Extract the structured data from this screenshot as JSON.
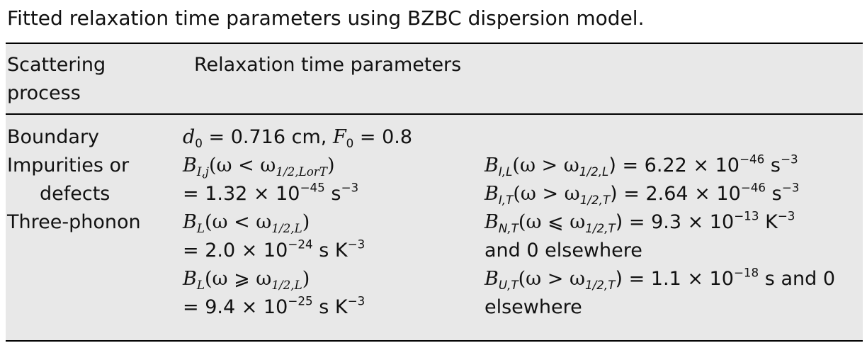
{
  "caption": "Fitted relaxation time parameters using BZBC dispersion model.",
  "header": {
    "col1_line1": "Scattering",
    "col1_line2": "process",
    "col2": "Relaxation time parameters"
  },
  "rows": {
    "boundary": {
      "label": "Boundary",
      "d_sym": "d",
      "d_sub": "0",
      "d_value": " = 0.716 cm, ",
      "f_sym": "F",
      "f_sub": "0",
      "f_value": " = 0.8"
    },
    "impurities": {
      "label_line1": "Impurities or",
      "label_line2": "defects",
      "left_line1_sym": "B",
      "left_line1_sub": "I,j",
      "left_line1_arg": "(ω < ω",
      "left_line1_argsub": "1/2,LorT",
      "left_line1_end": ")",
      "left_line2": "= 1.32 × 10",
      "left_line2_exp": "−45",
      "left_line2_unit": " s",
      "left_line2_unit_exp": "−3",
      "right_line1_sym": "B",
      "right_line1_sub": "I,L",
      "right_line1_arg": "(ω > ω",
      "right_line1_argsub": "1/2,L",
      "right_line1_val": ") = 6.22 × 10",
      "right_line1_exp": "−46",
      "right_line1_unit": " s",
      "right_line1_unit_exp": "−3",
      "right_line2_sym": "B",
      "right_line2_sub": "I,T",
      "right_line2_arg": "(ω > ω",
      "right_line2_argsub": "1/2,T",
      "right_line2_val": ") = 2.64 × 10",
      "right_line2_exp": "−46",
      "right_line2_unit": " s",
      "right_line2_unit_exp": "−3"
    },
    "three_phonon": {
      "label": "Three-phonon",
      "a1_sym": "B",
      "a1_sub": "L",
      "a1_arg": "(ω < ω",
      "a1_argsub": "1/2,L",
      "a1_end": ")",
      "a2": "= 2.0 × 10",
      "a2_exp": "−24",
      "a2_unit": " s K",
      "a2_unit_exp": "−3",
      "a3_sym": "B",
      "a3_sub": "L",
      "a3_arg": "(ω ⩾ ω",
      "a3_argsub": "1/2,L",
      "a3_end": ")",
      "a4": "= 9.4 × 10",
      "a4_exp": "−25",
      "a4_unit": " s K",
      "a4_unit_exp": "−3",
      "b1_sym": "B",
      "b1_sub": "N,T",
      "b1_arg": "(ω ⩽ ω",
      "b1_argsub": "1/2,T",
      "b1_val": ") = 9.3 × 10",
      "b1_exp": "−13",
      "b1_unit": " K",
      "b1_unit_exp": "−3",
      "b2": "and 0 elsewhere",
      "b3_sym": "B",
      "b3_sub": "U,T",
      "b3_arg": "(ω > ω",
      "b3_argsub": "1/2,T",
      "b3_val": ") = 1.1 × 10",
      "b3_exp": "−18",
      "b3_unit": " s and 0",
      "b4": "elsewhere"
    }
  }
}
